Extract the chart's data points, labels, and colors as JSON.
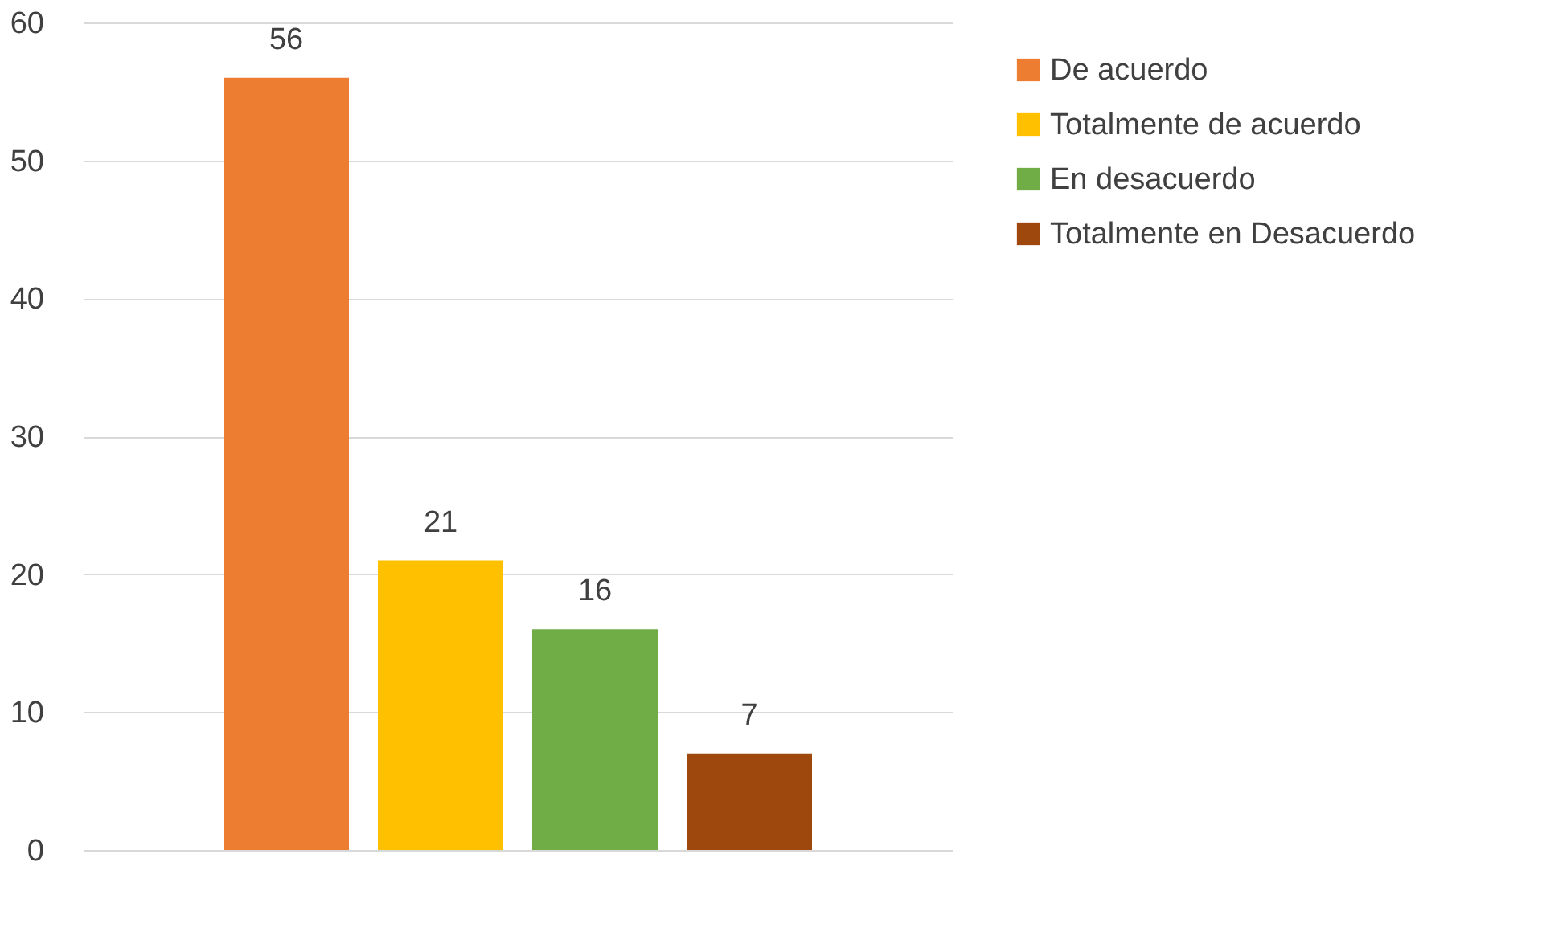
{
  "chart_data": {
    "type": "bar",
    "categories": [
      null
    ],
    "series": [
      {
        "name": "De acuerdo",
        "color": "#ed7d31",
        "values": [
          56
        ]
      },
      {
        "name": "Totalmente de acuerdo",
        "color": "#ffc000",
        "values": [
          21
        ]
      },
      {
        "name": "En desacuerdo",
        "color": "#70ad47",
        "values": [
          16
        ]
      },
      {
        "name": "Totalmente en Desacuerdo",
        "color": "#9e480e",
        "values": [
          7
        ]
      }
    ],
    "ylim": [
      0,
      60
    ],
    "yticks": [
      0,
      10,
      20,
      30,
      40,
      50,
      60
    ],
    "grid": "y",
    "legend": "right",
    "data_labels": true
  }
}
